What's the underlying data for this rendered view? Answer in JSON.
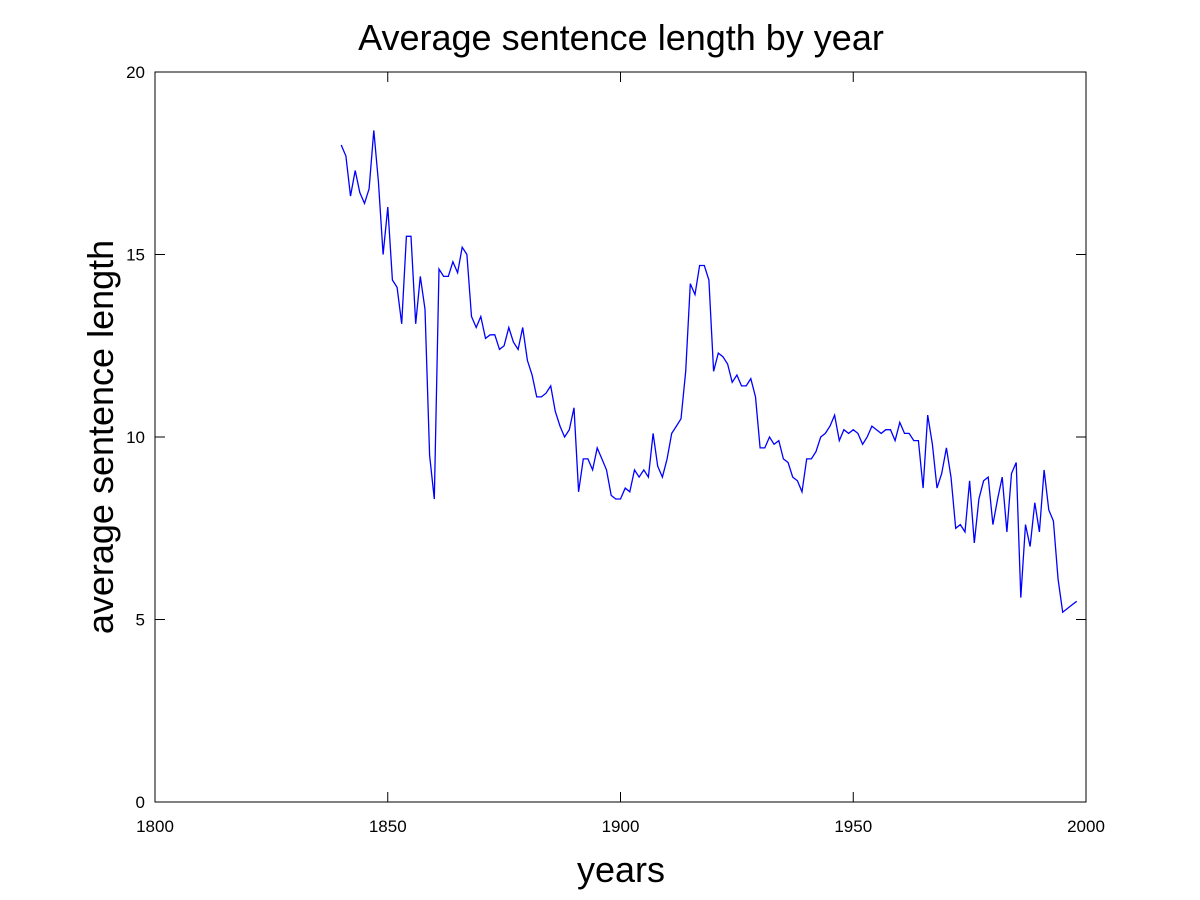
{
  "chart_data": {
    "type": "line",
    "title": "Average sentence length by year",
    "xlabel": "years",
    "ylabel": "average sentence length",
    "xlim": [
      1800,
      2000
    ],
    "ylim": [
      0,
      20
    ],
    "xticks": [
      1800,
      1850,
      1900,
      1950,
      2000
    ],
    "yticks": [
      0,
      5,
      10,
      15,
      20
    ],
    "xtick_labels": [
      "1800",
      "1850",
      "1900",
      "1950",
      "2000"
    ],
    "ytick_labels": [
      "0",
      "5",
      "10",
      "15",
      "20"
    ],
    "grid": false,
    "line_color": "#0000ff",
    "series": [
      {
        "x": [
          1840,
          1841,
          1842,
          1843,
          1844,
          1845,
          1846,
          1847,
          1848,
          1849,
          1850,
          1851,
          1852,
          1853,
          1854,
          1855,
          1856,
          1857,
          1858,
          1859,
          1860,
          1861,
          1862,
          1863,
          1864,
          1865,
          1866,
          1867,
          1868,
          1869,
          1870,
          1871,
          1872,
          1873,
          1874,
          1875,
          1876,
          1877,
          1878,
          1879,
          1880,
          1881,
          1882,
          1883,
          1884,
          1885,
          1886,
          1887,
          1888,
          1889,
          1890,
          1891,
          1892,
          1893,
          1894,
          1895,
          1896,
          1897,
          1898,
          1899,
          1900,
          1901,
          1902,
          1903,
          1904,
          1905,
          1906,
          1907,
          1908,
          1909,
          1910,
          1911,
          1912,
          1913,
          1914,
          1915,
          1916,
          1917,
          1918,
          1919,
          1920,
          1921,
          1922,
          1923,
          1924,
          1925,
          1926,
          1927,
          1928,
          1929,
          1930,
          1931,
          1932,
          1933,
          1934,
          1935,
          1936,
          1937,
          1938,
          1939,
          1940,
          1941,
          1942,
          1943,
          1944,
          1945,
          1946,
          1947,
          1948,
          1949,
          1950,
          1951,
          1952,
          1953,
          1954,
          1955,
          1956,
          1957,
          1958,
          1959,
          1960,
          1961,
          1962,
          1963,
          1964,
          1965,
          1966,
          1967,
          1968,
          1969,
          1970,
          1971,
          1972,
          1973,
          1974,
          1975,
          1976,
          1977,
          1978,
          1979,
          1980,
          1981,
          1982,
          1983,
          1984,
          1985,
          1986,
          1987,
          1988,
          1989,
          1990,
          1991,
          1992,
          1993,
          1994,
          1995,
          1996,
          1997,
          1998
        ],
        "y": [
          18.0,
          17.7,
          16.6,
          17.3,
          16.7,
          16.4,
          16.8,
          18.4,
          17.0,
          15.0,
          16.3,
          14.3,
          14.1,
          13.1,
          15.5,
          15.5,
          13.1,
          14.4,
          13.5,
          9.5,
          8.3,
          14.6,
          14.4,
          14.4,
          14.8,
          14.5,
          15.2,
          15.0,
          13.3,
          13.0,
          13.3,
          12.7,
          12.8,
          12.8,
          12.4,
          12.5,
          13.0,
          12.6,
          12.4,
          13.0,
          12.1,
          11.7,
          11.1,
          11.1,
          11.2,
          11.4,
          10.7,
          10.3,
          10.0,
          10.2,
          10.8,
          8.5,
          9.4,
          9.4,
          9.1,
          9.7,
          9.4,
          9.1,
          8.4,
          8.3,
          8.3,
          8.6,
          8.5,
          9.1,
          8.9,
          9.1,
          8.9,
          10.1,
          9.2,
          8.9,
          9.4,
          10.1,
          10.3,
          10.5,
          11.8,
          14.2,
          13.9,
          14.7,
          14.7,
          14.3,
          11.8,
          12.3,
          12.2,
          12.0,
          11.5,
          11.7,
          11.4,
          11.4,
          11.6,
          11.1,
          9.7,
          9.7,
          10.0,
          9.8,
          9.9,
          9.4,
          9.3,
          8.9,
          8.8,
          8.5,
          9.4,
          9.4,
          9.6,
          10.0,
          10.1,
          10.3,
          10.6,
          9.9,
          10.2,
          10.1,
          10.2,
          10.1,
          9.8,
          10.0,
          10.3,
          10.2,
          10.1,
          10.2,
          10.2,
          9.9,
          10.4,
          10.1,
          10.1,
          9.9,
          9.9,
          8.6,
          10.6,
          9.8,
          8.6,
          9.0,
          9.7,
          8.9,
          7.5,
          7.6,
          7.4,
          8.8,
          7.1,
          8.3,
          8.8,
          8.9,
          7.6,
          8.3,
          8.9,
          7.4,
          9.0,
          9.3,
          5.6,
          7.6,
          7.0,
          8.2,
          7.4,
          9.1,
          8.0,
          7.7,
          6.1,
          5.2,
          5.3,
          5.4,
          5.5
        ]
      }
    ]
  }
}
